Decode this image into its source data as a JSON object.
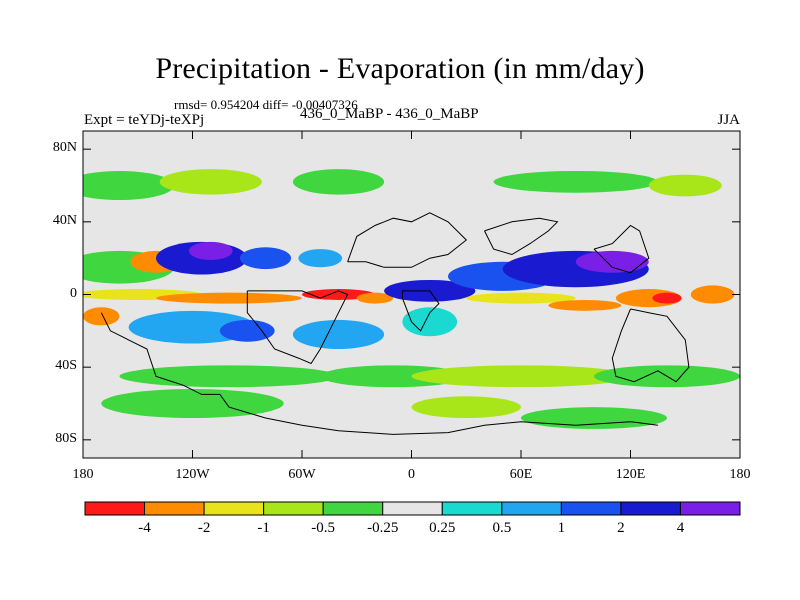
{
  "chart_data": {
    "type": "heatmap",
    "title": "Precipitation - Evaporation (in mm/day)",
    "stats": "rmsd= 0.954204 diff= -0.00407326",
    "left_subtitle": "Expt = teYDj-teXPj",
    "center_subtitle": "436_0_MaBP - 436_0_MaBP",
    "right_subtitle": "JJA",
    "x_ticks": [
      "180",
      "120W",
      "60W",
      "0",
      "60E",
      "120E",
      "180"
    ],
    "y_ticks": [
      "80N",
      "40N",
      "0",
      "40S",
      "80S"
    ],
    "xlim": [
      -180,
      180
    ],
    "ylim": [
      -90,
      90
    ],
    "colorbar": {
      "labels": [
        "-4",
        "-2",
        "-1",
        "-0.5",
        "-0.25",
        "0.25",
        "0.5",
        "1",
        "2",
        "4"
      ],
      "colors": [
        "#ff1a1a",
        "#ff8c00",
        "#e8e31a",
        "#a8e61a",
        "#3fd63f",
        "#e6e6e6",
        "#1ad9d0",
        "#22a6f2",
        "#1a52f0",
        "#1a1ad0",
        "#7a20e6"
      ]
    }
  }
}
